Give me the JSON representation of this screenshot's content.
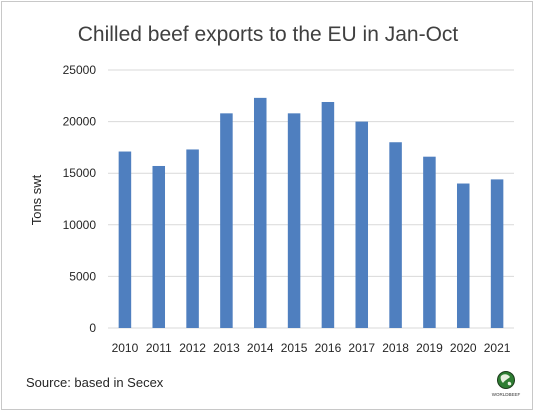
{
  "chart_data": {
    "type": "bar",
    "title": "Chilled beef exports to the EU in Jan-Oct",
    "ylabel": "Tons swt",
    "xlabel": "",
    "categories": [
      "2010",
      "2011",
      "2012",
      "2013",
      "2014",
      "2015",
      "2016",
      "2017",
      "2018",
      "2019",
      "2020",
      "2021"
    ],
    "values": [
      17100,
      15700,
      17300,
      20800,
      22300,
      20800,
      21900,
      20000,
      18000,
      16600,
      14000,
      14400
    ],
    "ylim": [
      0,
      25000
    ],
    "yticks": [
      0,
      5000,
      10000,
      15000,
      20000,
      25000
    ],
    "grid": true,
    "legend": "none",
    "bar_color": "#4f7fbf"
  },
  "footer": {
    "source": "Source:  based in Secex",
    "logo_text": "WORLDBEEF",
    "logo": "globe-logo"
  }
}
